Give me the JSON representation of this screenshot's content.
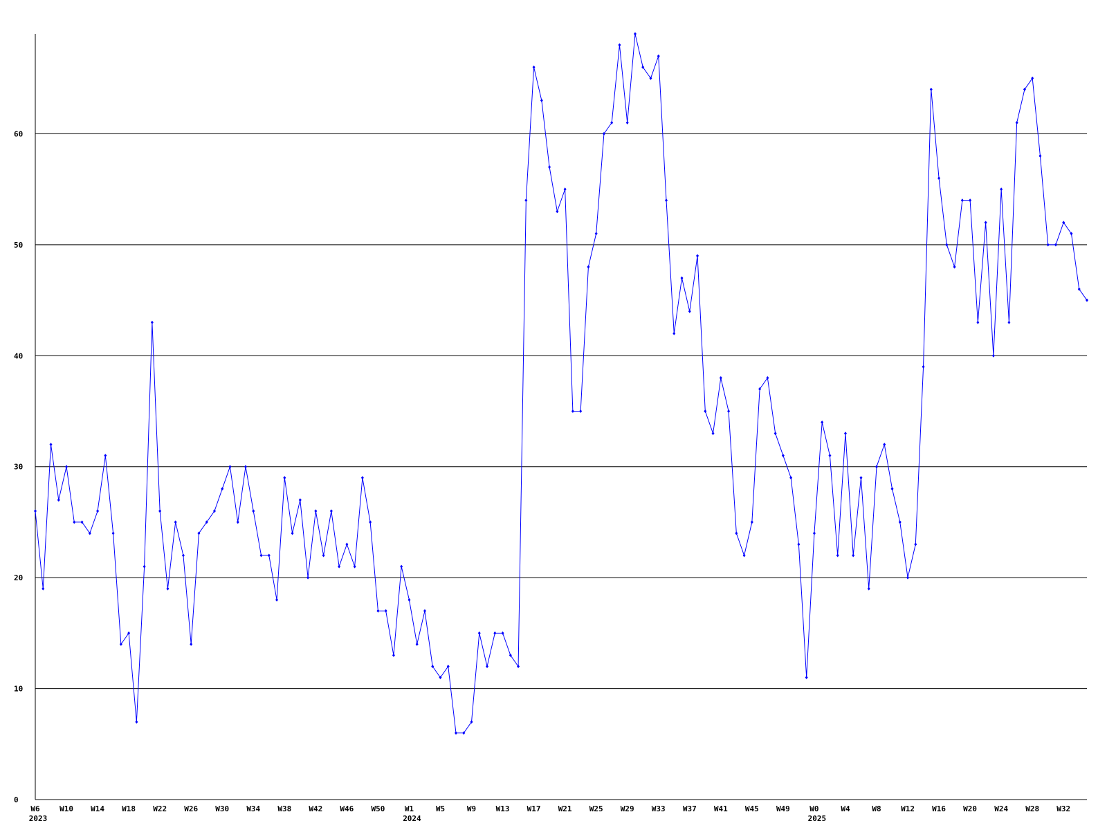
{
  "chart_data": {
    "type": "line",
    "color": "#0000ff",
    "grid": true,
    "ylim": [
      0,
      69
    ],
    "yticks": [
      0,
      10,
      20,
      30,
      40,
      50,
      60
    ],
    "categories": [
      "W6",
      null,
      null,
      null,
      "W10",
      null,
      null,
      null,
      "W14",
      null,
      null,
      null,
      "W18",
      null,
      null,
      null,
      "W22",
      null,
      null,
      null,
      "W26",
      null,
      null,
      null,
      "W30",
      null,
      null,
      null,
      "W34",
      null,
      null,
      null,
      "W38",
      null,
      null,
      null,
      "W42",
      null,
      null,
      null,
      "W46",
      null,
      null,
      null,
      "W50",
      null,
      null,
      null,
      "W1",
      null,
      null,
      null,
      "W5",
      null,
      null,
      null,
      "W9",
      null,
      null,
      null,
      "W13",
      null,
      null,
      null,
      "W17",
      null,
      null,
      null,
      "W21",
      null,
      null,
      null,
      "W25",
      null,
      null,
      null,
      "W29",
      null,
      null,
      null,
      "W33",
      null,
      null,
      null,
      "W37",
      null,
      null,
      null,
      "W41",
      null,
      null,
      null,
      "W45",
      null,
      null,
      null,
      "W49",
      null,
      null,
      null,
      "W0",
      null,
      null,
      null,
      "W4",
      null,
      null,
      null,
      "W8",
      null,
      null,
      null,
      "W12",
      null,
      null,
      null,
      "W16",
      null,
      null,
      null,
      "W20",
      null,
      null,
      null,
      "W24",
      null,
      null,
      null,
      "W28",
      null,
      null,
      null,
      "W32",
      null,
      null,
      null
    ],
    "category_years": [
      "2023",
      null,
      null,
      null,
      null,
      null,
      null,
      null,
      null,
      null,
      null,
      null,
      null,
      null,
      null,
      null,
      null,
      null,
      null,
      null,
      null,
      null,
      null,
      null,
      null,
      null,
      null,
      null,
      null,
      null,
      null,
      null,
      null,
      null,
      null,
      null,
      null,
      null,
      null,
      null,
      null,
      null,
      null,
      null,
      null,
      null,
      null,
      null,
      "2024",
      null,
      null,
      null,
      null,
      null,
      null,
      null,
      null,
      null,
      null,
      null,
      null,
      null,
      null,
      null,
      null,
      null,
      null,
      null,
      null,
      null,
      null,
      null,
      null,
      null,
      null,
      null,
      null,
      null,
      null,
      null,
      null,
      null,
      null,
      null,
      null,
      null,
      null,
      null,
      null,
      null,
      null,
      null,
      null,
      null,
      null,
      null,
      null,
      null,
      null,
      null,
      "2025",
      null,
      null,
      null,
      null,
      null,
      null,
      null,
      null,
      null,
      null,
      null,
      null,
      null,
      null,
      null,
      null,
      null,
      null,
      null,
      null,
      null,
      null,
      null,
      null,
      null,
      null,
      null,
      null,
      null,
      null,
      null,
      null,
      null,
      null,
      null
    ],
    "values": [
      26,
      19,
      32,
      27,
      30,
      25,
      25,
      24,
      26,
      31,
      24,
      14,
      15,
      7,
      21,
      43,
      26,
      19,
      25,
      22,
      14,
      24,
      25,
      26,
      28,
      30,
      25,
      30,
      26,
      22,
      22,
      18,
      29,
      24,
      27,
      20,
      26,
      22,
      26,
      21,
      23,
      21,
      29,
      25,
      17,
      17,
      13,
      21,
      18,
      14,
      17,
      12,
      11,
      12,
      6,
      6,
      7,
      15,
      12,
      15,
      15,
      13,
      12,
      54,
      66,
      63,
      57,
      53,
      55,
      35,
      35,
      48,
      51,
      60,
      61,
      68,
      61,
      69,
      66,
      65,
      67,
      54,
      42,
      47,
      44,
      49,
      35,
      33,
      38,
      35,
      24,
      22,
      25,
      37,
      38,
      33,
      31,
      29,
      23,
      11,
      24,
      34,
      31,
      22,
      33,
      22,
      29,
      19,
      30,
      32,
      28,
      25,
      20,
      23,
      39,
      64,
      56,
      50,
      48,
      54,
      54,
      43,
      52,
      40,
      55,
      43,
      61,
      64,
      65,
      58,
      50,
      50,
      52,
      51,
      46,
      45
    ]
  }
}
